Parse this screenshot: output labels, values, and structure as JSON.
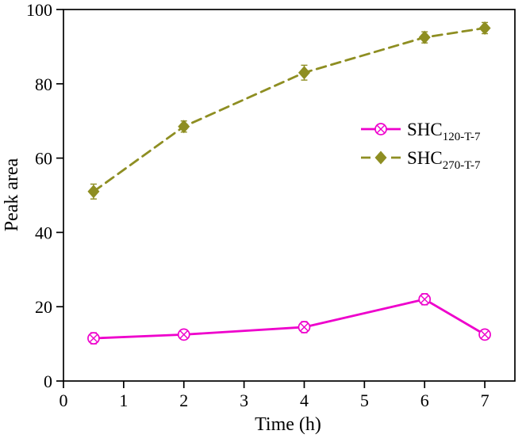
{
  "figure": {
    "background": "#ffffff",
    "axis_color": "#000000"
  },
  "chart_data": {
    "type": "line",
    "title": "",
    "xlabel": "Time (h)",
    "ylabel": "Peak area",
    "xlim": [
      0,
      7.5
    ],
    "ylim": [
      0,
      100
    ],
    "xticks": [
      0,
      1,
      2,
      3,
      4,
      5,
      6,
      7
    ],
    "yticks": [
      0,
      20,
      40,
      60,
      80,
      100
    ],
    "grid": false,
    "legend_position": "center-right",
    "legend_frame": false,
    "x": [
      0.5,
      2,
      4,
      6,
      7
    ],
    "series": [
      {
        "name_base": "SHC",
        "name_sub": "120-T-7",
        "values": [
          11.5,
          12.5,
          14.5,
          22,
          12.5
        ],
        "errors": [
          1.5,
          1.2,
          1.5,
          1.5,
          1.2
        ],
        "color": "#ee00cc",
        "line_style": "solid",
        "marker": "circle-x"
      },
      {
        "name_base": "SHC",
        "name_sub": "270-T-7",
        "values": [
          51,
          68.5,
          83,
          92.5,
          95
        ],
        "errors": [
          2,
          1.5,
          2,
          1.5,
          1.5
        ],
        "color": "#8e8e22",
        "line_style": "dashed",
        "marker": "diamond"
      }
    ]
  }
}
